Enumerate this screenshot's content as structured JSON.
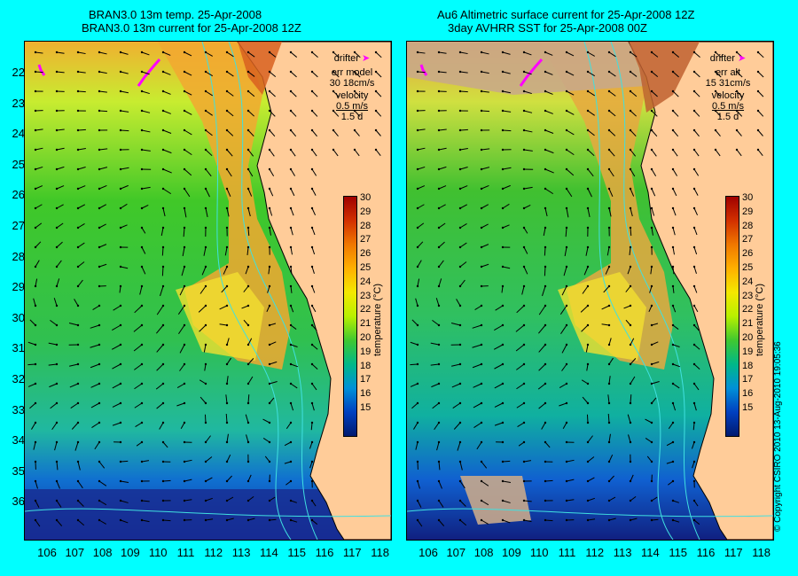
{
  "left_panel": {
    "title_line1": "BRAN3.0 13m temp. 25-Apr-2008",
    "title_line2": "BRAN3.0 13m current for 25-Apr-2008 12Z",
    "legend": {
      "drifter": "drifter",
      "err_label": "err model",
      "err_value": "30 18cm/s",
      "velocity_label": "velocity",
      "velocity_scale": "0.5 m/s",
      "velocity_days": "1.5 d"
    }
  },
  "right_panel": {
    "title_line1": "Au6 Altimetric surface current for 25-Apr-2008 12Z",
    "title_line2": "3day AVHRR SST for 25-Apr-2008 00Z",
    "legend": {
      "drifter": "drifter",
      "err_label": "err alt",
      "err_value": "15 31cm/s",
      "velocity_label": "velocity",
      "velocity_scale": "0.5 m/s",
      "velocity_days": "1.5 d"
    }
  },
  "axes": {
    "latitude_ticks": [
      "22",
      "23",
      "24",
      "25",
      "26",
      "27",
      "28",
      "29",
      "30",
      "31",
      "32",
      "33",
      "34",
      "35",
      "36"
    ],
    "longitude_ticks": [
      "106",
      "107",
      "108",
      "109",
      "110",
      "111",
      "112",
      "113",
      "114",
      "115",
      "116",
      "117",
      "118"
    ]
  },
  "colorbar": {
    "label": "temperature (°C)",
    "ticks": [
      "30",
      "29",
      "28",
      "27",
      "26",
      "25",
      "24",
      "23",
      "22",
      "21",
      "20",
      "19",
      "18",
      "17",
      "16",
      "15"
    ],
    "colors": {
      "warm": "#a00000",
      "orange": "#f07800",
      "yellow": "#f4e800",
      "green": "#40c830",
      "cyan": "#00b888",
      "blue": "#0040c0",
      "deep": "#001a70"
    }
  },
  "colors": {
    "background": "#00ffff",
    "land": "#ffcc99",
    "drifter": "#ff00ff",
    "no_data": "#c8a88c",
    "contour": "#40e0e0"
  },
  "copyright": "© Copyright CSIRO 2010   13-Aug-2010 19:05:36"
}
